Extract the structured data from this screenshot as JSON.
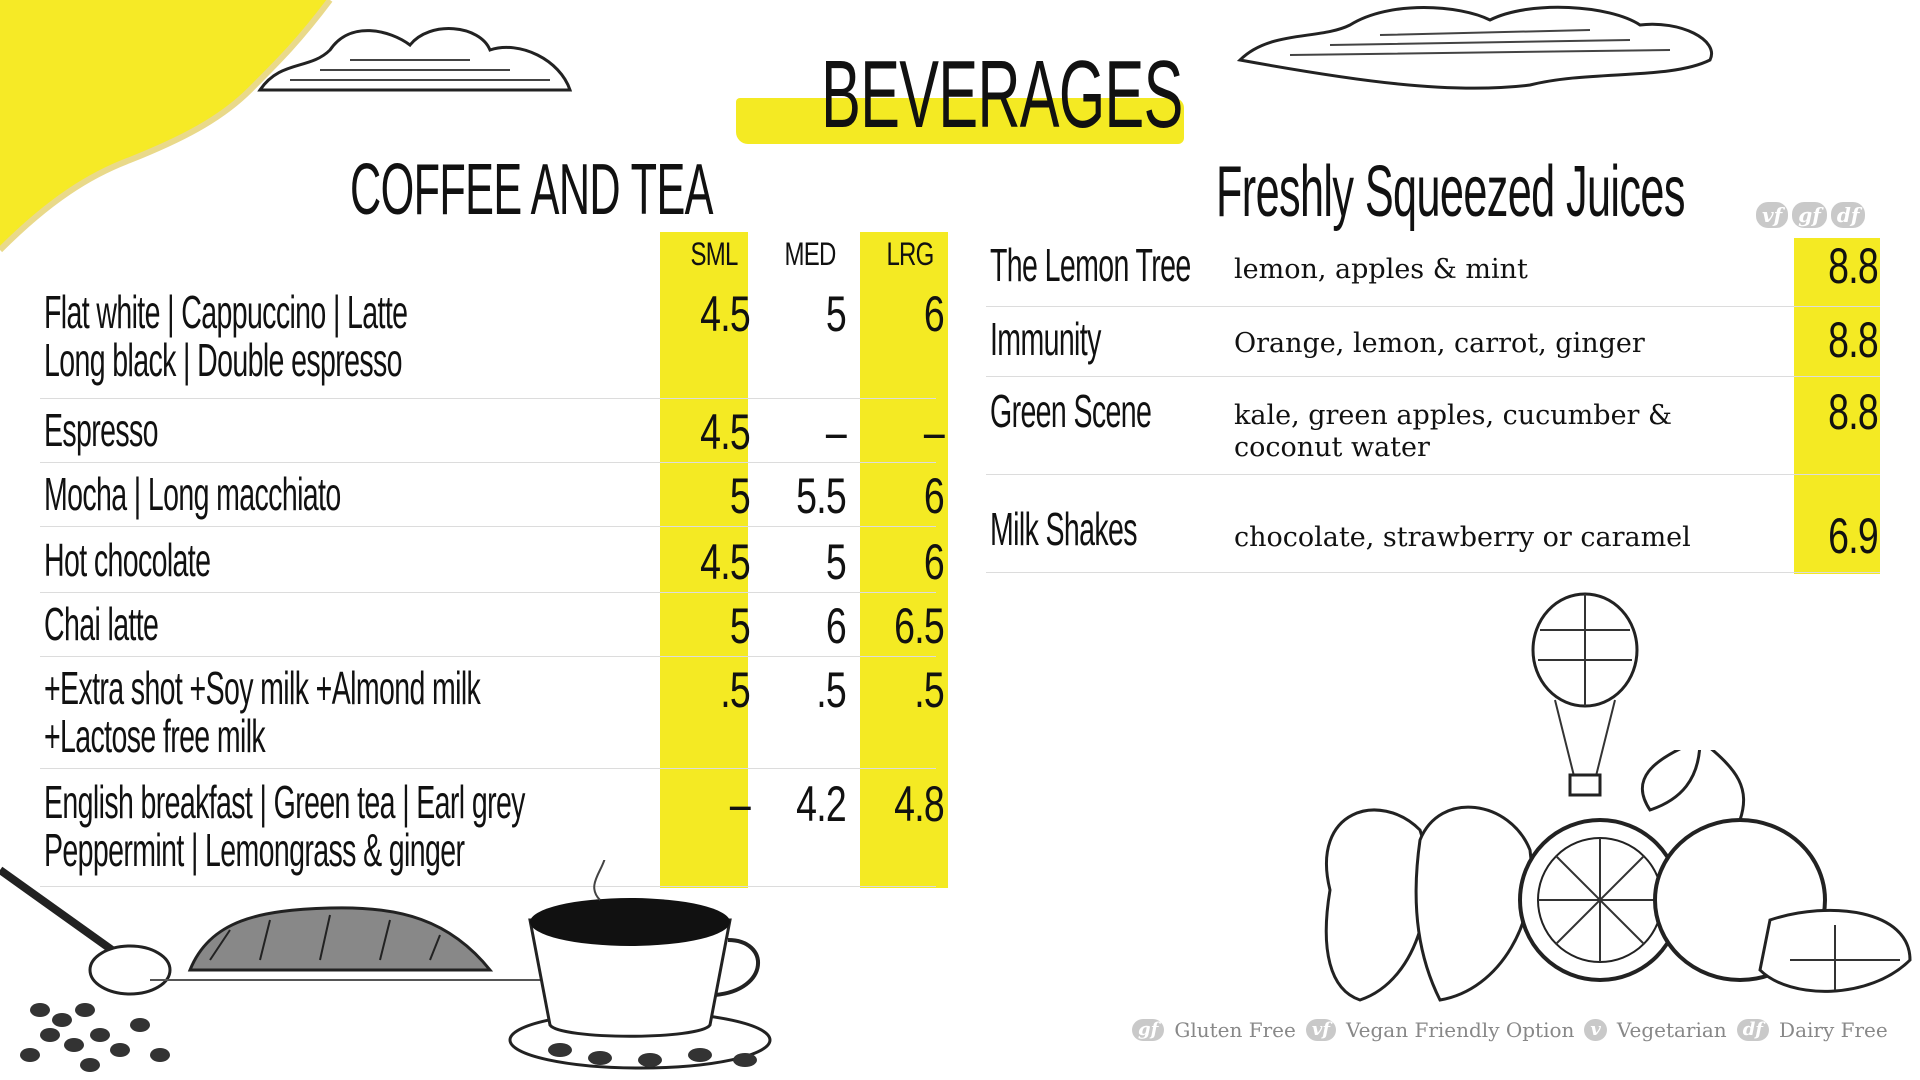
{
  "title": "BEVERAGES",
  "coffee": {
    "heading": "COFFEE AND TEA",
    "sizes": {
      "sml": "SML",
      "med": "MED",
      "lrg": "LRG"
    },
    "rows": [
      {
        "line1": "Flat white | Cappuccino | Latte",
        "line2": "Long black | Double espresso",
        "sml": "4.5",
        "med": "5",
        "lrg": "6"
      },
      {
        "line1": "Espresso",
        "line2": "",
        "sml": "4.5",
        "med": "–",
        "lrg": "–"
      },
      {
        "line1": "Mocha | Long macchiato",
        "line2": "",
        "sml": "5",
        "med": "5.5",
        "lrg": "6"
      },
      {
        "line1": "Hot chocolate",
        "line2": "",
        "sml": "4.5",
        "med": "5",
        "lrg": "6"
      },
      {
        "line1": "Chai latte",
        "line2": "",
        "sml": "5",
        "med": "6",
        "lrg": "6.5"
      },
      {
        "line1": "+Extra shot   +Soy milk   +Almond milk",
        "line2": "+Lactose free milk",
        "sml": ".5",
        "med": ".5",
        "lrg": ".5"
      },
      {
        "line1": "English breakfast | Green tea | Earl grey",
        "line2": "Peppermint | Lemongrass & ginger",
        "sml": "–",
        "med": "4.2",
        "lrg": "4.8"
      }
    ]
  },
  "juices": {
    "heading": "Freshly Squeezed Juices",
    "badges": [
      "vf",
      "gf",
      "df"
    ],
    "items": [
      {
        "name": "The Lemon Tree",
        "desc": "lemon, apples & mint",
        "price": "8.8"
      },
      {
        "name": "Immunity",
        "desc": "Orange, lemon, carrot, ginger",
        "price": "8.8"
      },
      {
        "name": "Green Scene",
        "desc": "kale, green apples, cucumber & coconut water",
        "price": "8.8"
      },
      {
        "name": "Milk Shakes",
        "desc": "chocolate, strawberry or caramel",
        "price": "6.9"
      }
    ]
  },
  "legend": [
    {
      "badge": "gf",
      "label": "Gluten Free"
    },
    {
      "badge": "vf",
      "label": "Vegan Friendly Option"
    },
    {
      "badge": "v",
      "label": "Vegetarian"
    },
    {
      "badge": "df",
      "label": "Dairy Free"
    }
  ],
  "colors": {
    "highlight": "#f4ea23",
    "text": "#111111",
    "badge": "#c9c9c9"
  },
  "illustrations": [
    "cloud-icon",
    "cloud-icon",
    "coffee-beans-icon",
    "rock-landscape-icon",
    "coffee-cup-icon",
    "hot-air-balloon-icon",
    "citrus-fruits-icon"
  ]
}
